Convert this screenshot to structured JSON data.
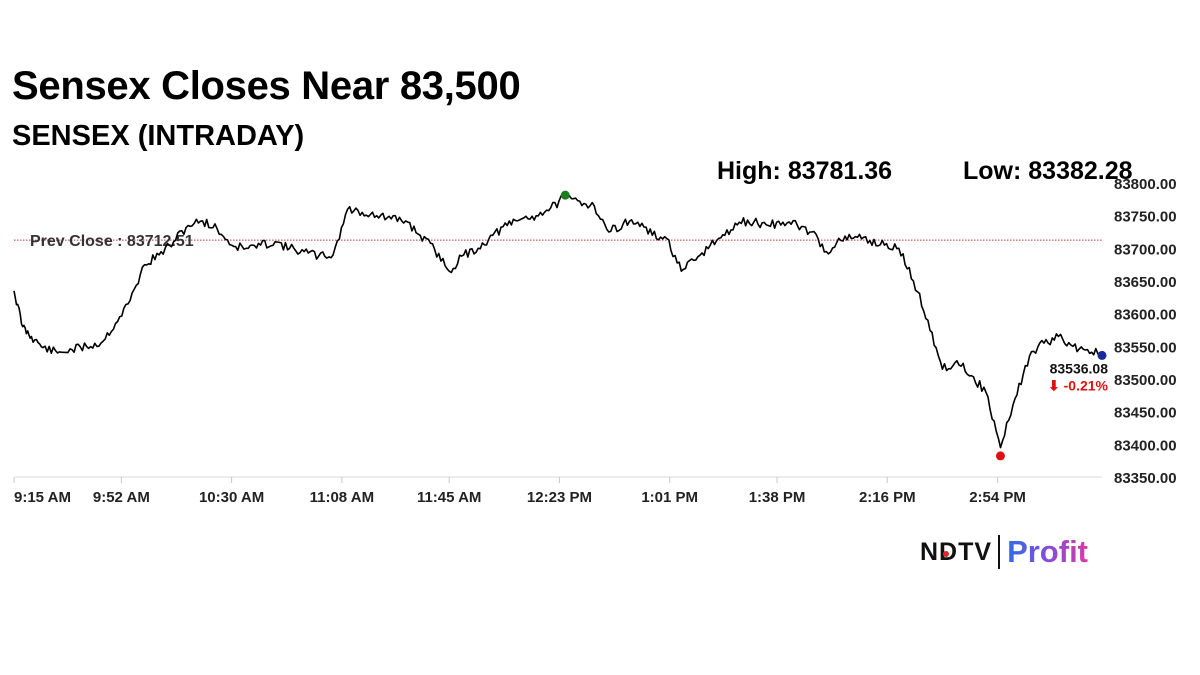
{
  "chart_data": {
    "type": "line",
    "title": "Sensex Closes Near 83,500",
    "subtitle": "SENSEX (INTRADAY)",
    "high_label": "High: 83781.36",
    "low_label": "Low: 83382.28",
    "high": 83781.36,
    "low": 83382.28,
    "prev_close_label": "Prev Close : 83712.51",
    "prev_close": 83712.51,
    "last_value_label": "83536.08",
    "last_value": 83536.08,
    "change_label": "⬇ -0.21%",
    "ylim": [
      83350,
      83800
    ],
    "yticks": [
      83350,
      83400,
      83450,
      83500,
      83550,
      83600,
      83650,
      83700,
      83750,
      83800
    ],
    "ytick_labels": [
      "83350.00",
      "83400.00",
      "83450.00",
      "83500.00",
      "83550.00",
      "83600.00",
      "83650.00",
      "83700.00",
      "83750.00",
      "83800.00"
    ],
    "xlim": [
      "9:15",
      "15:30"
    ],
    "xticks": [
      "9:15",
      "9:52",
      "10:30",
      "11:08",
      "11:45",
      "12:23",
      "13:01",
      "13:38",
      "14:16",
      "14:54"
    ],
    "xtick_labels": [
      "9:15 AM",
      "9:52 AM",
      "10:30 AM",
      "11:08 AM",
      "11:45 AM",
      "12:23 PM",
      "1:01 PM",
      "1:38 PM",
      "2:16 PM",
      "2:54 PM"
    ],
    "x": [
      "9:15",
      "9:18",
      "9:21",
      "9:25",
      "9:30",
      "9:35",
      "9:40",
      "9:45",
      "9:50",
      "9:55",
      "10:00",
      "10:05",
      "10:10",
      "10:15",
      "10:20",
      "10:25",
      "10:30",
      "10:35",
      "10:40",
      "10:45",
      "10:50",
      "10:55",
      "11:00",
      "11:05",
      "11:10",
      "11:15",
      "11:20",
      "11:25",
      "11:30",
      "11:35",
      "11:40",
      "11:45",
      "11:50",
      "11:55",
      "12:00",
      "12:05",
      "12:10",
      "12:15",
      "12:20",
      "12:25",
      "12:30",
      "12:35",
      "12:40",
      "12:45",
      "12:50",
      "12:55",
      "13:00",
      "13:05",
      "13:10",
      "13:15",
      "13:20",
      "13:25",
      "13:30",
      "13:35",
      "13:40",
      "13:45",
      "13:50",
      "13:55",
      "14:00",
      "14:05",
      "14:10",
      "14:15",
      "14:20",
      "14:25",
      "14:30",
      "14:35",
      "14:40",
      "14:45",
      "14:50",
      "14:55",
      "15:00",
      "15:05",
      "15:10",
      "15:15",
      "15:20",
      "15:25",
      "15:30"
    ],
    "values": [
      83635,
      83580,
      83565,
      83548,
      83540,
      83545,
      83550,
      83555,
      83585,
      83620,
      83675,
      83690,
      83710,
      83735,
      83742,
      83730,
      83705,
      83700,
      83705,
      83710,
      83700,
      83695,
      83688,
      83690,
      83760,
      83755,
      83750,
      83745,
      83742,
      83720,
      83698,
      83665,
      83690,
      83700,
      83720,
      83735,
      83745,
      83750,
      83762,
      83778,
      83772,
      83765,
      83725,
      83738,
      83740,
      83720,
      83715,
      83665,
      83682,
      83705,
      83720,
      83740,
      83740,
      83735,
      83740,
      83735,
      83725,
      83695,
      83712,
      83718,
      83712,
      83705,
      83700,
      83650,
      83590,
      83515,
      83528,
      83505,
      83480,
      83395,
      83470,
      83535,
      83555,
      83565,
      83550,
      83545,
      83536
    ],
    "series_color": "#000000",
    "high_marker_color": "#1a7f1a",
    "low_marker_color": "#e01010",
    "last_marker_color": "#1a2a9a",
    "prev_close_line_color": "#d03030",
    "change_color": "#e01010",
    "grid": false
  },
  "branding": {
    "ndtv": "NDTV",
    "profit": "Profit"
  }
}
